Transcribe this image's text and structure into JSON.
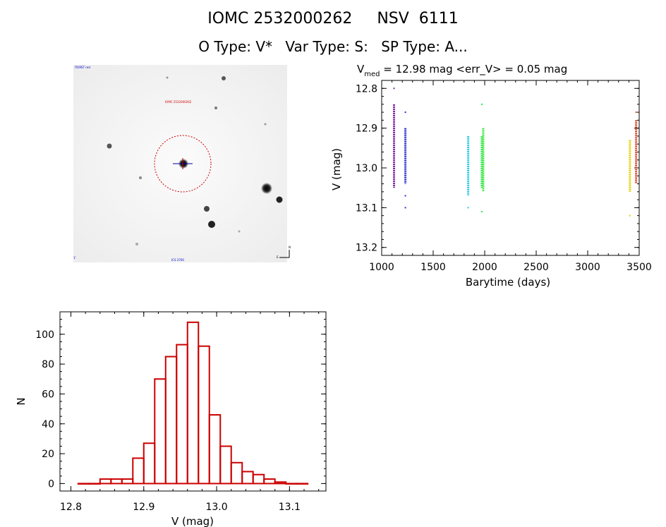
{
  "header": {
    "catalog_id": "IOMC 2532000262",
    "star_name": "NSV  6111",
    "object_type": "O Type: V*",
    "var_type": "Var Type: S:",
    "sp_type": "SP Type: A..."
  },
  "image_panel": {
    "corner_label_top": "ПOЯSТ red",
    "target_label": "IOMC 2532000262",
    "bottom_label": "ICS 3700",
    "bottom_left_mark": "1'",
    "compass_east": "E",
    "compass_north": "N"
  },
  "chart_data": [
    {
      "type": "scatter",
      "title_prefix": "V",
      "title_subscript": "med",
      "title_rest": " = 12.98 mag <err_V> = 0.05 mag",
      "xlabel": "Barytime (days)",
      "ylabel": "V (mag)",
      "xlim": [
        1000,
        3500
      ],
      "ylim": [
        13.22,
        12.78
      ],
      "y_inverted": true,
      "xticks": [
        1000,
        1500,
        2000,
        2500,
        3000,
        3500
      ],
      "yticks": [
        12.8,
        12.9,
        13.0,
        13.1,
        13.2
      ],
      "groups": [
        {
          "x": 1120,
          "y_min": 12.84,
          "y_max": 13.05,
          "extra": [
            12.8
          ],
          "color": "#7a1fa0"
        },
        {
          "x": 1230,
          "y_min": 12.9,
          "y_max": 13.04,
          "extra": [
            12.86,
            13.07,
            13.1
          ],
          "color": "#2e2ec8"
        },
        {
          "x": 1840,
          "y_min": 12.92,
          "y_max": 13.07,
          "extra": [
            13.1
          ],
          "color": "#22c8e6"
        },
        {
          "x": 1972,
          "y_min": 12.92,
          "y_max": 13.05,
          "extra": [
            12.84,
            13.11
          ],
          "color": "#29e64a"
        },
        {
          "x": 1986,
          "y_min": 12.9,
          "y_max": 13.06,
          "extra": [],
          "color": "#3fe63f"
        },
        {
          "x": 3410,
          "y_min": 12.93,
          "y_max": 13.06,
          "extra": [
            13.12
          ],
          "color": "#e0d000"
        },
        {
          "x": 3470,
          "y_min": 12.88,
          "y_max": 13.04,
          "extra": [
            12.86
          ],
          "color": "#e04020"
        }
      ]
    },
    {
      "type": "bar",
      "xlabel": "V (mag)",
      "ylabel": "N",
      "xlim": [
        12.785,
        13.15
      ],
      "ylim": [
        -5,
        115
      ],
      "xticks": [
        12.8,
        12.9,
        13.0,
        13.1
      ],
      "yticks": [
        0,
        20,
        40,
        60,
        80,
        100
      ],
      "bin_width": 0.015,
      "bin_starts": [
        12.81,
        12.825,
        12.84,
        12.855,
        12.87,
        12.885,
        12.9,
        12.915,
        12.93,
        12.945,
        12.96,
        12.975,
        12.99,
        13.005,
        13.02,
        13.035,
        13.05,
        13.065,
        13.08,
        13.095,
        13.11
      ],
      "values": [
        0,
        0,
        3,
        3,
        3,
        17,
        27,
        70,
        85,
        93,
        108,
        92,
        46,
        25,
        14,
        8,
        6,
        3,
        1,
        0,
        0
      ],
      "color": "#cc0000"
    }
  ]
}
